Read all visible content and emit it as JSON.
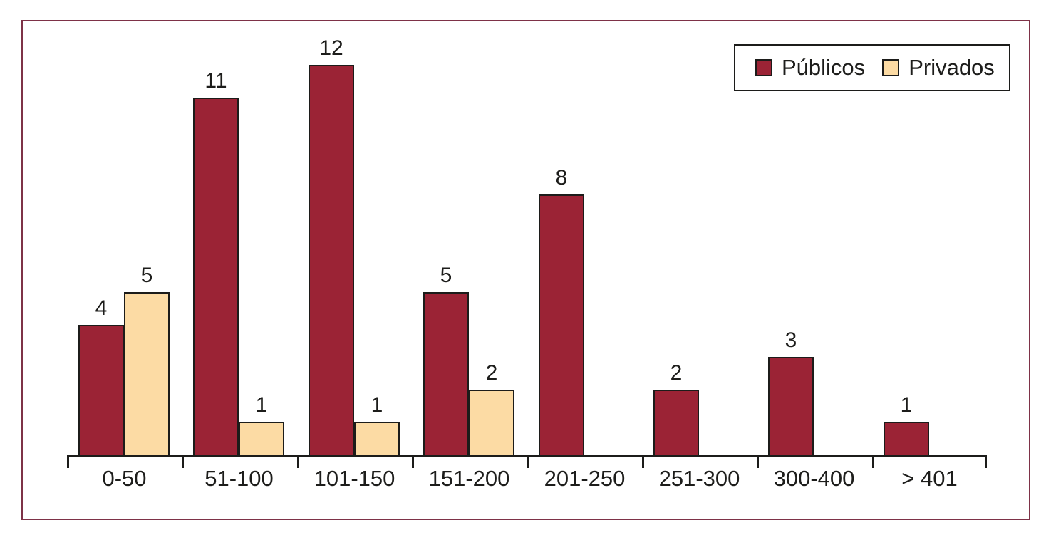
{
  "chart_data": {
    "type": "bar",
    "categories": [
      "0-50",
      "51-100",
      "101-150",
      "151-200",
      "201-250",
      "251-300",
      "300-400",
      "> 401"
    ],
    "series": [
      {
        "key": "publicos",
        "name": "Públicos",
        "color": "#9B2335",
        "values": [
          4,
          11,
          12,
          5,
          8,
          2,
          3,
          1
        ]
      },
      {
        "key": "privados",
        "name": "Privados",
        "color": "#FCDBA4",
        "values": [
          5,
          1,
          1,
          2,
          null,
          null,
          null,
          null
        ]
      }
    ],
    "ylim": [
      0,
      12
    ],
    "bar_value_labels": true,
    "grid": false,
    "y_axis_visible": false,
    "legend_position": "top-right"
  },
  "colors": {
    "frame_border": "#7E3247",
    "axis_and_outline": "#1C1C1A",
    "text": "#1D1D1B",
    "background": "#FFFFFF"
  }
}
